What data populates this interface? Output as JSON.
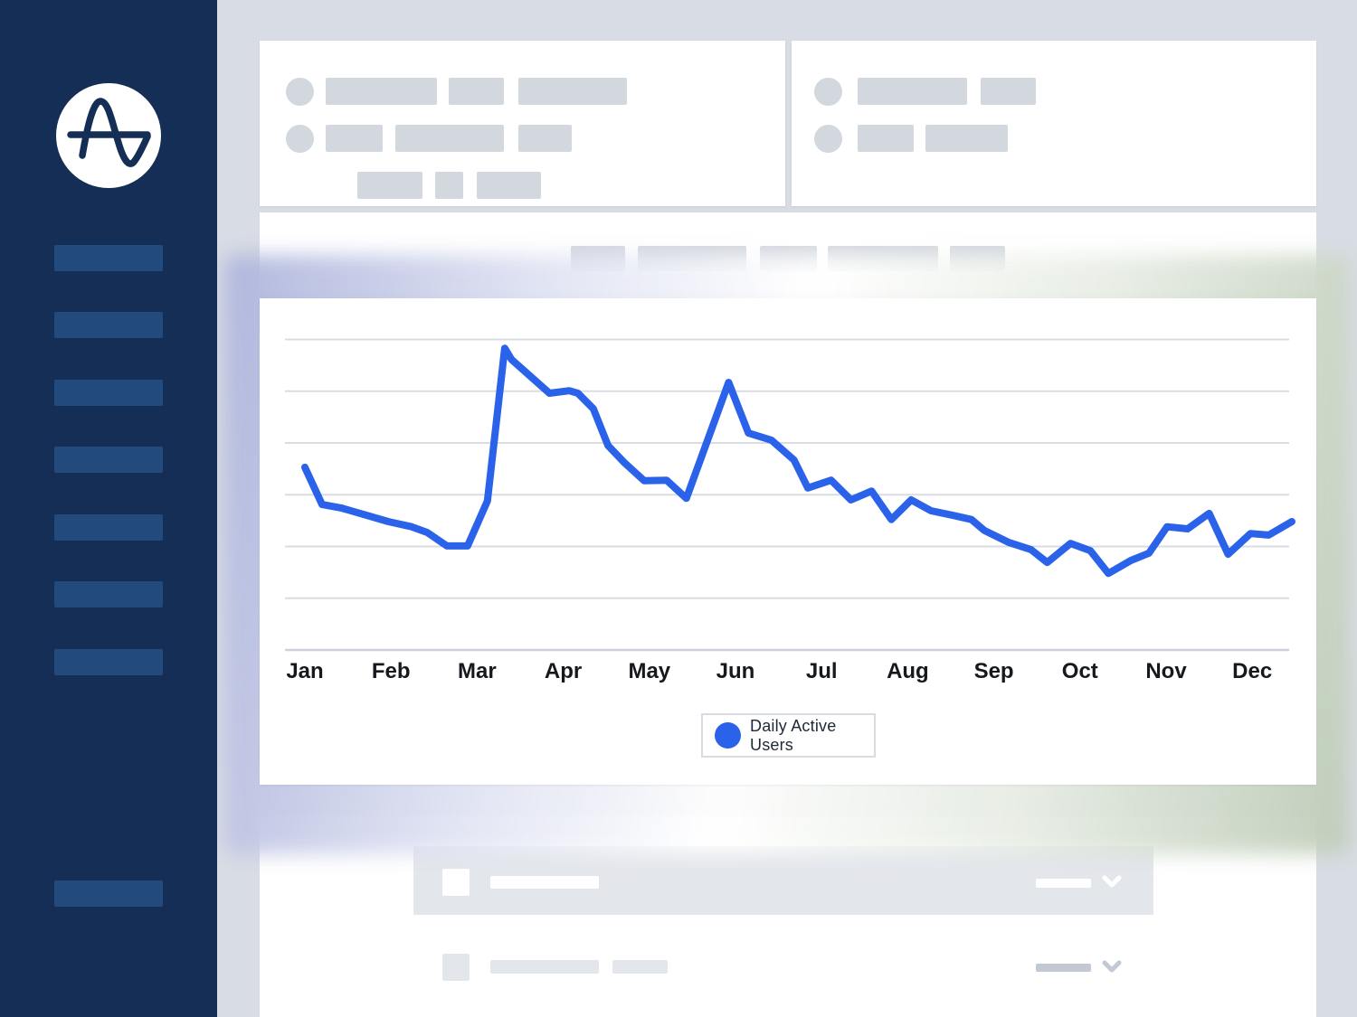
{
  "colors": {
    "page_bg": "#d8dce4",
    "sidebar_bg": "#152e55",
    "sidebar_bar": "#224a7d",
    "skeleton": "#d3d7de",
    "row_band": "#e3e6eb",
    "row_item_dark": "#c3c9d4",
    "grid_line": "#d9dde3",
    "axis_line": "#ccd1d9",
    "accent_blue": "#2a62e9",
    "label_text": "#15181d",
    "legend_text": "#1e2837",
    "glow_left": "#aeb5dc",
    "glow_right": "#bfcdb9"
  },
  "sidebar": {
    "logo_icon": "amplitude-wave-icon",
    "nav_placeholder_count": 7,
    "footer_placeholder_count": 1
  },
  "legend": {
    "label": "Daily Active Users"
  },
  "chart_data": {
    "type": "line",
    "title": "",
    "xlabel": "",
    "ylabel": "",
    "categories": [
      "Jan",
      "Feb",
      "Mar",
      "Apr",
      "May",
      "Jun",
      "Jul",
      "Aug",
      "Sep",
      "Oct",
      "Nov",
      "Dec"
    ],
    "ylim": [
      0,
      70
    ],
    "grid_step": 10,
    "y_tick_labels_visible": false,
    "grid": true,
    "legend_position": "bottom-center",
    "series": [
      {
        "name": "Daily Active Users",
        "color": "#2a62e9",
        "x_unit": "month_index_0_based",
        "points": [
          [
            0,
            35.3
          ],
          [
            0.2,
            28.1
          ],
          [
            0.43,
            27.4
          ],
          [
            0.97,
            24.8
          ],
          [
            1.24,
            23.8
          ],
          [
            1.42,
            22.7
          ],
          [
            1.65,
            20.1
          ],
          [
            1.89,
            20.1
          ],
          [
            2.12,
            28.8
          ],
          [
            2.32,
            58.3
          ],
          [
            2.4,
            56.1
          ],
          [
            2.84,
            49.6
          ],
          [
            3.07,
            50.1
          ],
          [
            3.17,
            49.6
          ],
          [
            3.35,
            46.6
          ],
          [
            3.52,
            39.5
          ],
          [
            3.71,
            36.2
          ],
          [
            3.94,
            32.7
          ],
          [
            4.2,
            32.8
          ],
          [
            4.43,
            29.3
          ],
          [
            4.92,
            51.7
          ],
          [
            5.15,
            41.9
          ],
          [
            5.33,
            41.0
          ],
          [
            5.42,
            40.5
          ],
          [
            5.68,
            36.7
          ],
          [
            5.84,
            31.3
          ],
          [
            6.11,
            32.8
          ],
          [
            6.34,
            29.0
          ],
          [
            6.58,
            30.7
          ],
          [
            6.81,
            25.2
          ],
          [
            7.04,
            29.0
          ],
          [
            7.27,
            26.9
          ],
          [
            7.53,
            26.0
          ],
          [
            7.74,
            25.2
          ],
          [
            7.89,
            23.1
          ],
          [
            8.17,
            20.8
          ],
          [
            8.43,
            19.4
          ],
          [
            8.62,
            16.9
          ],
          [
            8.89,
            20.6
          ],
          [
            9.12,
            19.2
          ],
          [
            9.33,
            14.8
          ],
          [
            9.59,
            17.3
          ],
          [
            9.8,
            18.7
          ],
          [
            10.01,
            23.8
          ],
          [
            10.25,
            23.4
          ],
          [
            10.5,
            26.4
          ],
          [
            10.72,
            18.5
          ],
          [
            10.98,
            22.5
          ],
          [
            11.19,
            22.2
          ],
          [
            11.46,
            24.8
          ]
        ]
      }
    ]
  }
}
